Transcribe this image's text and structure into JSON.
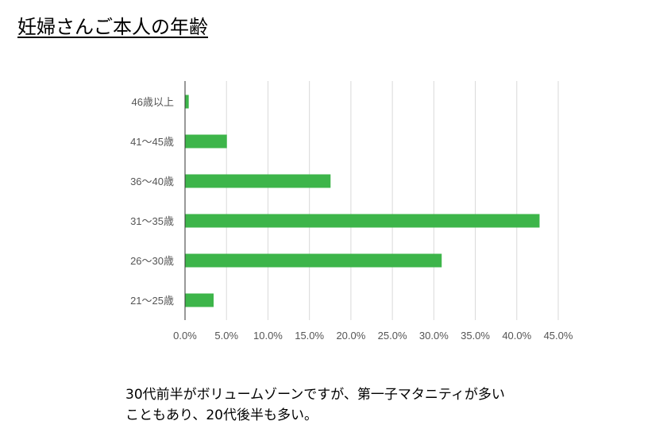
{
  "page": {
    "title": "妊婦さんご本人の年齢",
    "caption": "30代前半がボリュームゾーンですが、第一子マタニティが多い\nこともあり、20代後半も多い。"
  },
  "chart_data": {
    "type": "bar",
    "orientation": "horizontal",
    "title": "",
    "xlabel": "",
    "ylabel": "",
    "categories": [
      "46歳以上",
      "41〜45歳",
      "36〜40歳",
      "31〜35歳",
      "26〜30歳",
      "21〜25歳"
    ],
    "values": [
      0.4,
      5.0,
      17.5,
      42.7,
      30.9,
      3.4
    ],
    "unit": "%",
    "xlim": [
      0,
      45
    ],
    "xticks": [
      "0.0%",
      "5.0%",
      "10.0%",
      "15.0%",
      "20.0%",
      "25.0%",
      "30.0%",
      "35.0%",
      "40.0%",
      "45.0%"
    ],
    "grid": true,
    "legend": "none",
    "bar_color": "#3db54a"
  }
}
